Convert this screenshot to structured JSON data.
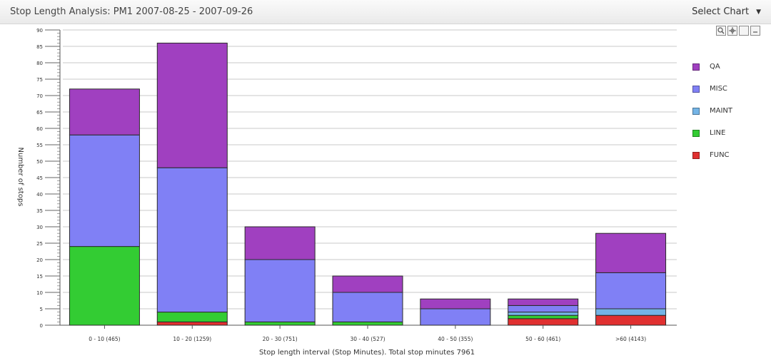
{
  "header": {
    "title": "Stop Length Analysis: PM1 2007-08-25 - 2007-09-26",
    "select_chart_label": "Select Chart"
  },
  "toolbar_icons": [
    "zoom-icon",
    "pan-icon",
    "blank-icon",
    "minimize-icon"
  ],
  "chart_data": {
    "type": "bar",
    "stacked": true,
    "ylabel": "Number of stops",
    "xlabel": "Stop length interval (Stop Minutes). Total stop minutes 7961",
    "ylim": [
      0,
      90
    ],
    "ytick_step": 5,
    "grid": true,
    "legend_position": "right",
    "categories": [
      "0 - 10 (465)",
      "10 - 20 (1259)",
      "20 - 30 (751)",
      "30 - 40 (527)",
      "40 - 50 (355)",
      "50 - 60 (461)",
      ">60 (4143)"
    ],
    "series": [
      {
        "name": "FUNC",
        "color": "#e03030",
        "values": [
          0,
          1,
          0,
          0,
          0,
          2,
          3
        ]
      },
      {
        "name": "LINE",
        "color": "#33cc33",
        "values": [
          24,
          3,
          1,
          1,
          0,
          1,
          0
        ]
      },
      {
        "name": "MAINT",
        "color": "#74b4e6",
        "values": [
          0,
          0,
          0,
          0,
          0,
          1,
          2
        ]
      },
      {
        "name": "MISC",
        "color": "#8080f5",
        "values": [
          34,
          44,
          19,
          9,
          5,
          2,
          11
        ]
      },
      {
        "name": "QA",
        "color": "#a040c0",
        "values": [
          14,
          38,
          10,
          5,
          3,
          2,
          12
        ]
      }
    ],
    "legend_order": [
      "QA",
      "MISC",
      "MAINT",
      "LINE",
      "FUNC"
    ]
  }
}
